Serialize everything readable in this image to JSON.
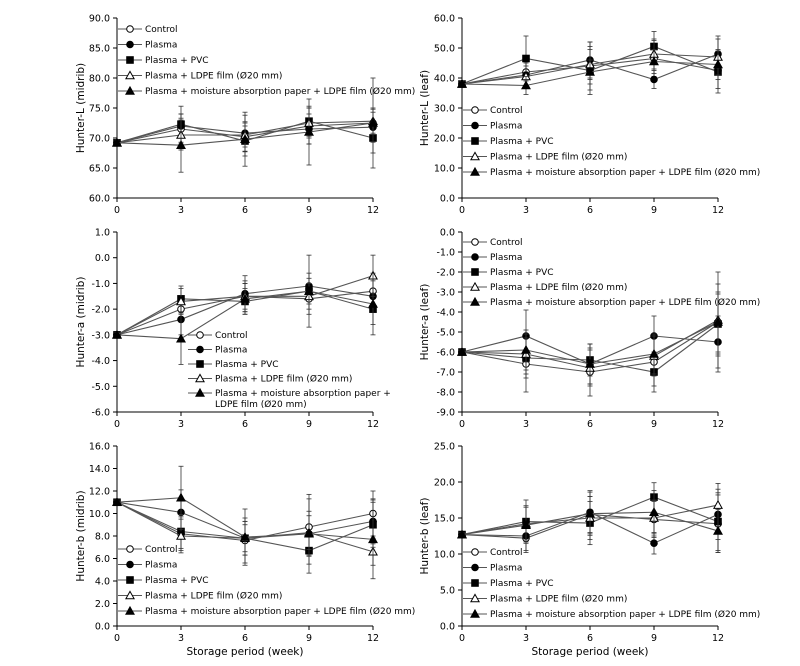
{
  "figure": {
    "xlabel": "Storage period (week)"
  },
  "legend_labels": [
    "Control",
    "Plasma",
    "Plasma + PVC",
    "Plasma + LDPE film (Ø20 mm)",
    "Plasma + moisture absorption paper + LDPE film (Ø20 mm)"
  ],
  "chart_data": [
    {
      "type": "line",
      "id": "L-midrib",
      "ylabel": "Hunter-L (midrib)",
      "x": [
        0,
        3,
        6,
        9,
        12
      ],
      "xticks": [
        "0",
        "3",
        "6",
        "9",
        "12"
      ],
      "ylim": [
        60,
        90
      ],
      "yticks": [
        "60.0",
        "65.0",
        "70.0",
        "75.0",
        "80.0",
        "85.0",
        "90.0"
      ],
      "grid": false,
      "legend_position": "top-left",
      "legend_lines": [
        [
          "Control"
        ],
        [
          "Plasma"
        ],
        [
          "Plasma + PVC"
        ],
        [
          "Plasma + LDPE film (Ø20 mm)"
        ],
        [
          "Plasma + moisture absorption paper + LDPE film (Ø20 mm)"
        ]
      ],
      "series": [
        {
          "name": "Control",
          "marker": "circle-open",
          "values": [
            69.2,
            71.5,
            70.2,
            72.0,
            72.5
          ],
          "err": [
            0.5,
            2.5,
            2.5,
            3.0,
            2.5
          ]
        },
        {
          "name": "Plasma",
          "marker": "circle-filled",
          "values": [
            69.2,
            72.0,
            70.8,
            71.5,
            71.8
          ],
          "err": [
            0.5,
            2.0,
            3.0,
            2.5,
            2.5
          ]
        },
        {
          "name": "Plasma + PVC",
          "marker": "square-filled",
          "values": [
            69.2,
            72.3,
            69.5,
            72.8,
            70.0
          ],
          "err": [
            0.5,
            3.0,
            2.5,
            2.5,
            2.5
          ]
        },
        {
          "name": "Plasma + LDPE film (Ø20 mm)",
          "marker": "triangle-open",
          "values": [
            69.2,
            70.5,
            70.5,
            72.5,
            72.8
          ],
          "err": [
            0.5,
            2.5,
            2.0,
            2.5,
            2.0
          ]
        },
        {
          "name": "Plasma + moisture absorption paper + LDPE film (Ø20 mm)",
          "marker": "triangle-filled",
          "values": [
            69.2,
            68.8,
            69.8,
            71.0,
            72.5
          ],
          "err": [
            0.5,
            4.5,
            4.5,
            5.5,
            7.5
          ]
        }
      ]
    },
    {
      "type": "line",
      "id": "L-leaf",
      "ylabel": "Hunter-L (leaf)",
      "x": [
        0,
        3,
        6,
        9,
        12
      ],
      "xticks": [
        "0",
        "3",
        "6",
        "9",
        "12"
      ],
      "ylim": [
        0,
        60
      ],
      "yticks": [
        "0.0",
        "10.0",
        "20.0",
        "30.0",
        "40.0",
        "50.0",
        "60.0"
      ],
      "grid": false,
      "legend_position": "bottom-left",
      "legend_lines": [
        [
          "Control"
        ],
        [
          "Plasma"
        ],
        [
          "Plasma + PVC"
        ],
        [
          "Plasma + LDPE film (Ø20 mm)"
        ],
        [
          "Plasma + moisture absorption paper + LDPE film (Ø20 mm)"
        ]
      ],
      "series": [
        {
          "name": "Control",
          "marker": "circle-open",
          "values": [
            38.0,
            42.0,
            44.0,
            46.5,
            42.5
          ],
          "err": [
            1.0,
            5.0,
            8.0,
            6.0,
            6.0
          ]
        },
        {
          "name": "Plasma",
          "marker": "circle-filled",
          "values": [
            38.0,
            41.0,
            46.0,
            39.5,
            48.0
          ],
          "err": [
            1.0,
            4.0,
            6.0,
            3.0,
            6.0
          ]
        },
        {
          "name": "Plasma + PVC",
          "marker": "square-filled",
          "values": [
            38.0,
            46.5,
            42.5,
            50.5,
            42.0
          ],
          "err": [
            1.0,
            7.5,
            8.0,
            5.0,
            7.0
          ]
        },
        {
          "name": "Plasma + LDPE film (Ø20 mm)",
          "marker": "triangle-open",
          "values": [
            38.0,
            40.5,
            44.5,
            48.0,
            47.0
          ],
          "err": [
            1.0,
            3.5,
            5.0,
            5.0,
            6.0
          ]
        },
        {
          "name": "Plasma + moisture absorption paper + LDPE film (Ø20 mm)",
          "marker": "triangle-filled",
          "values": [
            38.0,
            37.5,
            42.0,
            45.5,
            44.5
          ],
          "err": [
            1.0,
            3.0,
            4.0,
            4.0,
            5.0
          ]
        }
      ]
    },
    {
      "type": "line",
      "id": "a-midrib",
      "ylabel": "Hunter-a (midrib)",
      "x": [
        0,
        3,
        6,
        9,
        12
      ],
      "xticks": [
        "0",
        "3",
        "6",
        "9",
        "12"
      ],
      "ylim": [
        -6,
        1
      ],
      "yticks": [
        "-6.0",
        "-5.0",
        "-4.0",
        "-3.0",
        "-2.0",
        "-1.0",
        "0.0",
        "1.0"
      ],
      "grid": false,
      "legend_position": "bottom-right",
      "legend_lines": [
        [
          "Control"
        ],
        [
          "Plasma"
        ],
        [
          "Plasma + PVC"
        ],
        [
          "Plasma + LDPE film (Ø20 mm)"
        ],
        [
          "Plasma + moisture absorption paper +",
          "LDPE film (Ø20 mm)"
        ]
      ],
      "series": [
        {
          "name": "Control",
          "marker": "circle-open",
          "values": [
            -3.0,
            -2.0,
            -1.5,
            -1.6,
            -1.3
          ],
          "err": [
            0.1,
            0.5,
            0.5,
            0.6,
            0.6
          ]
        },
        {
          "name": "Plasma",
          "marker": "circle-filled",
          "values": [
            -3.0,
            -2.4,
            -1.4,
            -1.1,
            -1.5
          ],
          "err": [
            0.1,
            0.6,
            0.7,
            0.5,
            0.6
          ]
        },
        {
          "name": "Plasma + PVC",
          "marker": "square-filled",
          "values": [
            -3.0,
            -1.6,
            -1.7,
            -1.3,
            -2.0
          ],
          "err": [
            0.1,
            0.5,
            0.5,
            0.5,
            0.6
          ]
        },
        {
          "name": "Plasma + LDPE film (Ø20 mm)",
          "marker": "triangle-open",
          "values": [
            -3.0,
            -1.7,
            -1.5,
            -1.5,
            -0.7
          ],
          "err": [
            0.1,
            0.5,
            0.6,
            0.5,
            0.8
          ]
        },
        {
          "name": "Plasma + moisture absorption paper + LDPE film (Ø20 mm)",
          "marker": "triangle-filled",
          "values": [
            -3.0,
            -3.15,
            -1.6,
            -1.3,
            -1.8
          ],
          "err": [
            0.1,
            1.0,
            0.6,
            1.4,
            1.2
          ]
        }
      ]
    },
    {
      "type": "line",
      "id": "a-leaf",
      "ylabel": "Hunter-a (leaf)",
      "x": [
        0,
        3,
        6,
        9,
        12
      ],
      "xticks": [
        "0",
        "3",
        "6",
        "9",
        "12"
      ],
      "ylim": [
        -9,
        0
      ],
      "yticks": [
        "-9.0",
        "-8.0",
        "-7.0",
        "-6.0",
        "-5.0",
        "-4.0",
        "-3.0",
        "-2.0",
        "-1.0",
        "0.0"
      ],
      "grid": false,
      "legend_position": "top-left",
      "legend_lines": [
        [
          "Control"
        ],
        [
          "Plasma"
        ],
        [
          "Plasma + PVC"
        ],
        [
          "Plasma + LDPE film (Ø20 mm)"
        ],
        [
          "Plasma + moisture absorption paper + LDPE film (Ø20 mm)"
        ]
      ],
      "series": [
        {
          "name": "Control",
          "marker": "circle-open",
          "values": [
            -6.0,
            -6.6,
            -7.0,
            -6.5,
            -4.5
          ],
          "err": [
            0.1,
            1.4,
            1.2,
            1.2,
            2.5
          ]
        },
        {
          "name": "Plasma",
          "marker": "circle-filled",
          "values": [
            -6.0,
            -5.2,
            -6.6,
            -5.2,
            -5.5
          ],
          "err": [
            0.1,
            1.3,
            1.0,
            1.0,
            1.3
          ]
        },
        {
          "name": "Plasma + PVC",
          "marker": "square-filled",
          "values": [
            -6.0,
            -6.3,
            -6.4,
            -7.0,
            -4.6
          ],
          "err": [
            0.1,
            1.0,
            0.8,
            1.0,
            1.5
          ]
        },
        {
          "name": "Plasma + LDPE film (Ø20 mm)",
          "marker": "triangle-open",
          "values": [
            -6.0,
            -6.1,
            -6.8,
            -6.2,
            -4.4
          ],
          "err": [
            0.1,
            1.0,
            0.9,
            1.0,
            1.8
          ]
        },
        {
          "name": "Plasma + moisture absorption paper + LDPE film (Ø20 mm)",
          "marker": "triangle-filled",
          "values": [
            -6.0,
            -5.9,
            -6.6,
            -6.1,
            -4.5
          ],
          "err": [
            0.1,
            1.0,
            1.0,
            1.0,
            1.5
          ]
        }
      ]
    },
    {
      "type": "line",
      "id": "b-midrib",
      "ylabel": "Hunter-b (midrib)",
      "x": [
        0,
        3,
        6,
        9,
        12
      ],
      "xticks": [
        "0",
        "3",
        "6",
        "9",
        "12"
      ],
      "ylim": [
        0,
        16
      ],
      "yticks": [
        "0.0",
        "2.0",
        "4.0",
        "6.0",
        "8.0",
        "10.0",
        "12.0",
        "14.0",
        "16.0"
      ],
      "grid": false,
      "legend_position": "bottom-left",
      "legend_lines": [
        [
          "Control"
        ],
        [
          "Plasma"
        ],
        [
          "Plasma + PVC"
        ],
        [
          "Plasma + LDPE film (Ø20 mm)"
        ],
        [
          "Plasma + moisture absorption paper + LDPE film (Ø20 mm)"
        ]
      ],
      "series": [
        {
          "name": "Control",
          "marker": "circle-open",
          "values": [
            11.0,
            8.2,
            7.6,
            8.8,
            10.0
          ],
          "err": [
            0.2,
            1.5,
            2.0,
            2.5,
            2.0
          ]
        },
        {
          "name": "Plasma",
          "marker": "circle-filled",
          "values": [
            11.0,
            10.1,
            7.8,
            8.2,
            9.3
          ],
          "err": [
            0.2,
            2.0,
            1.5,
            2.0,
            2.0
          ]
        },
        {
          "name": "Plasma + PVC",
          "marker": "square-filled",
          "values": [
            11.0,
            8.4,
            7.8,
            6.7,
            9.0
          ],
          "err": [
            0.2,
            1.5,
            1.5,
            1.2,
            2.0
          ]
        },
        {
          "name": "Plasma + LDPE film (Ø20 mm)",
          "marker": "triangle-open",
          "values": [
            11.0,
            8.0,
            7.8,
            8.3,
            6.6
          ],
          "err": [
            0.2,
            1.5,
            1.2,
            1.5,
            1.2
          ]
        },
        {
          "name": "Plasma + moisture absorption paper + LDPE film (Ø20 mm)",
          "marker": "triangle-filled",
          "values": [
            11.0,
            11.4,
            7.9,
            8.2,
            7.7
          ],
          "err": [
            0.2,
            2.8,
            2.5,
            3.5,
            3.5
          ]
        }
      ]
    },
    {
      "type": "line",
      "id": "b-leaf",
      "ylabel": "Hunter-b (leaf)",
      "x": [
        0,
        3,
        6,
        9,
        12
      ],
      "xticks": [
        "0",
        "3",
        "6",
        "9",
        "12"
      ],
      "ylim": [
        0,
        25
      ],
      "yticks": [
        "0.0",
        "5.0",
        "10.0",
        "15.0",
        "20.0",
        "25.0"
      ],
      "grid": false,
      "legend_position": "bottom-left",
      "legend_lines": [
        [
          "Control"
        ],
        [
          "Plasma"
        ],
        [
          "Plasma + PVC"
        ],
        [
          "Plasma + LDPE film (Ø20 mm)"
        ],
        [
          "Plasma + moisture absorption paper + LDPE film (Ø20 mm)"
        ]
      ],
      "series": [
        {
          "name": "Control",
          "marker": "circle-open",
          "values": [
            12.7,
            12.2,
            15.5,
            14.8,
            14.2
          ],
          "err": [
            0.3,
            2.0,
            2.5,
            2.5,
            4.0
          ]
        },
        {
          "name": "Plasma",
          "marker": "circle-filled",
          "values": [
            12.7,
            12.5,
            15.8,
            11.5,
            15.5
          ],
          "err": [
            0.3,
            2.0,
            3.0,
            1.5,
            3.5
          ]
        },
        {
          "name": "Plasma + PVC",
          "marker": "square-filled",
          "values": [
            12.7,
            14.5,
            14.3,
            17.9,
            14.5
          ],
          "err": [
            0.3,
            3.0,
            3.0,
            2.0,
            4.0
          ]
        },
        {
          "name": "Plasma + LDPE film (Ø20 mm)",
          "marker": "triangle-open",
          "values": [
            12.7,
            14.2,
            15.0,
            15.0,
            16.8
          ],
          "err": [
            0.3,
            2.5,
            3.0,
            2.5,
            3.0
          ]
        },
        {
          "name": "Plasma + moisture absorption paper + LDPE film (Ø20 mm)",
          "marker": "triangle-filled",
          "values": [
            12.7,
            14.0,
            15.6,
            15.8,
            13.2
          ],
          "err": [
            0.3,
            2.5,
            3.0,
            3.0,
            3.0
          ]
        }
      ]
    }
  ]
}
